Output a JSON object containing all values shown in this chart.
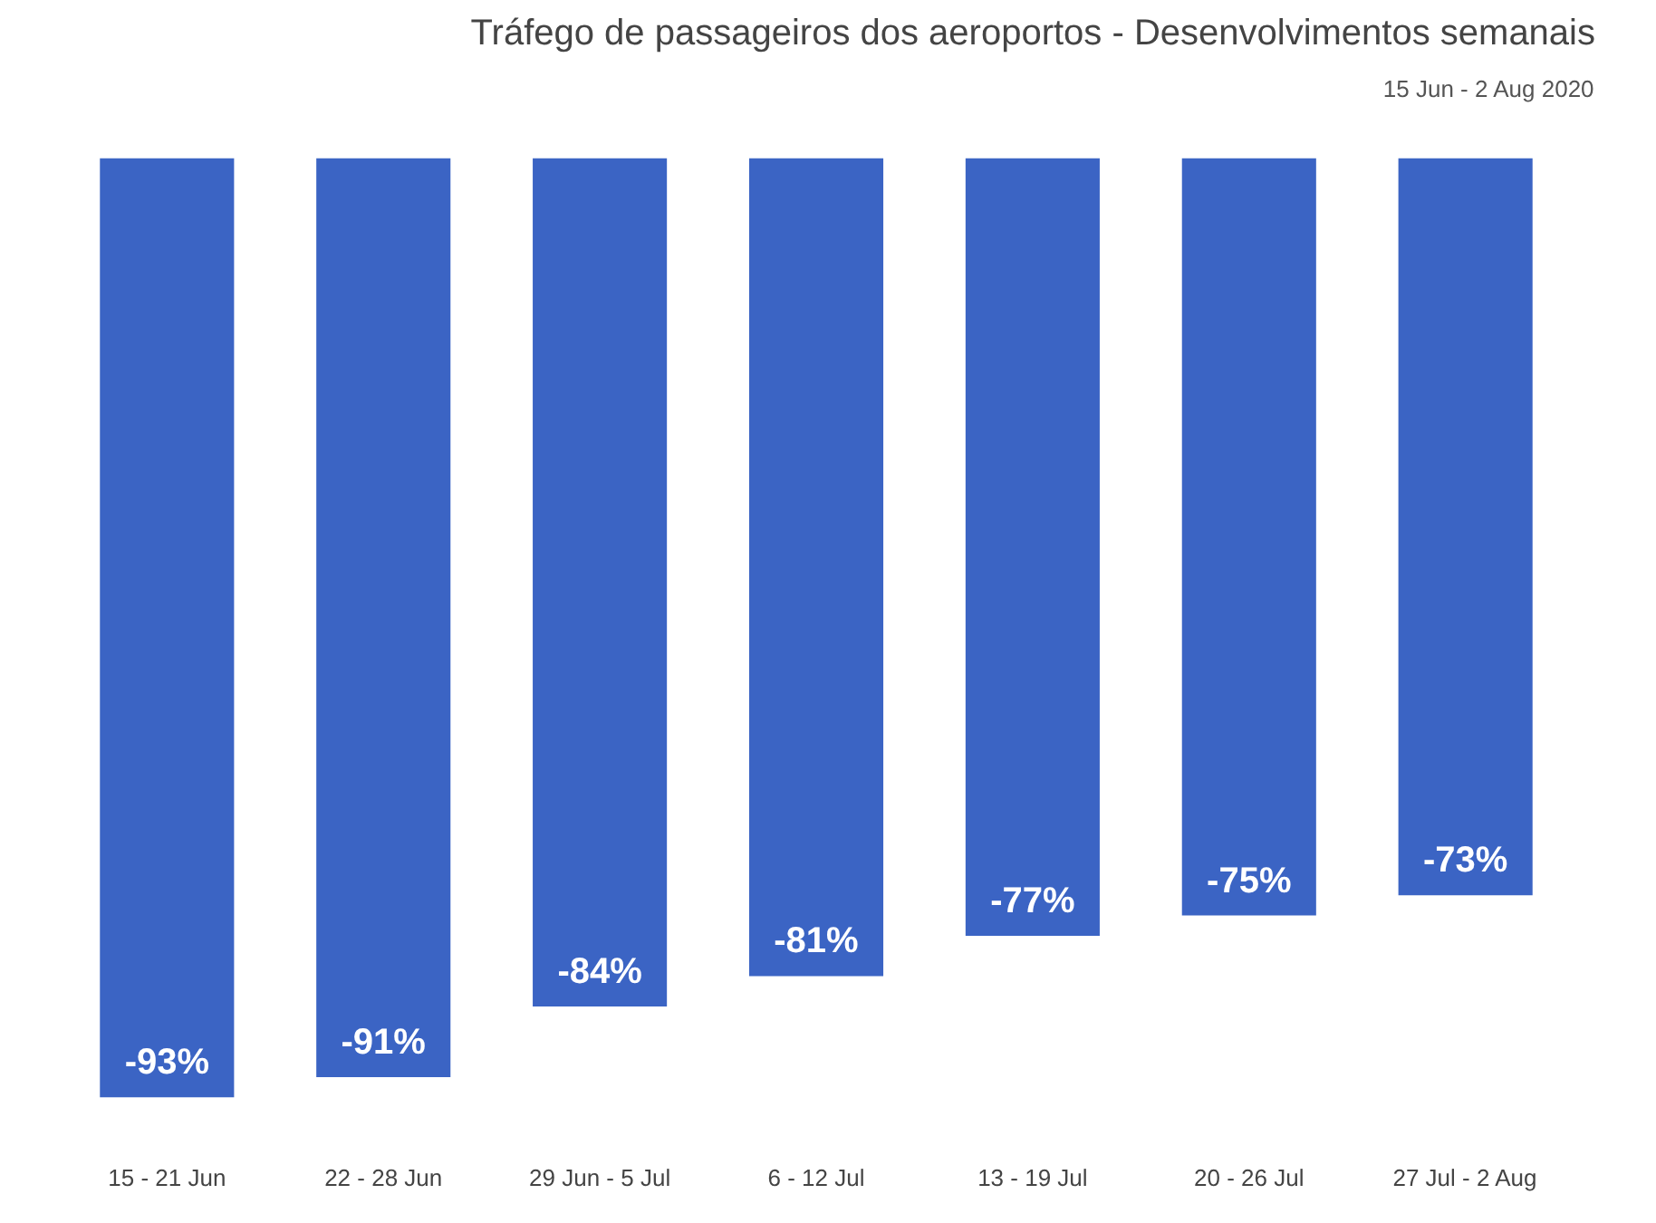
{
  "chart_data": {
    "type": "bar",
    "title": "Tráfego de passageiros dos aeroportos - Desenvolvimentos semanais",
    "subtitle": "15 Jun - 2 Aug 2020",
    "categories": [
      "15 - 21 Jun",
      "22 - 28 Jun",
      "29 Jun - 5 Jul",
      "6 - 12 Jul",
      "13 - 19 Jul",
      "20 - 26 Jul",
      "27 Jul - 2 Aug"
    ],
    "values": [
      -93,
      -91,
      -84,
      -81,
      -77,
      -75,
      -73
    ],
    "value_labels": [
      "-93%",
      "-91%",
      "-84%",
      "-81%",
      "-77%",
      "-75%",
      "-73%"
    ],
    "color": "#3b64c4",
    "tick_labels": "x",
    "grid": false
  }
}
